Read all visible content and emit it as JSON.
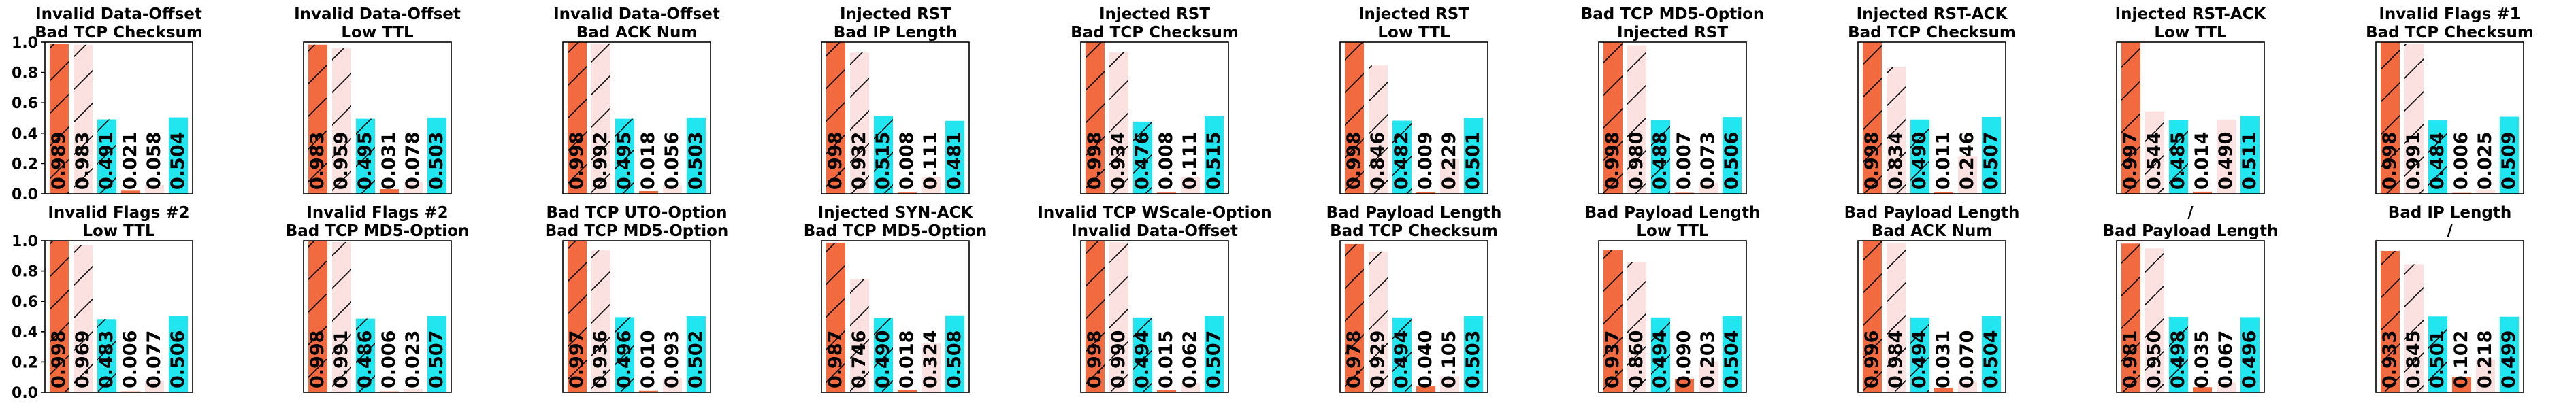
{
  "figure": {
    "colors": [
      "#f26a3f",
      "#fbe1df",
      "#21e6f0",
      "#f26a3f",
      "#fbe1df",
      "#21e6f0"
    ],
    "hatch": [
      true,
      true,
      true,
      false,
      false,
      false
    ],
    "yticks": [
      "0.0",
      "0.2",
      "0.4",
      "0.6",
      "0.8",
      "1.0"
    ],
    "ylim": [
      0,
      1
    ]
  },
  "chart_data": [
    {
      "type": "bar",
      "title": [
        "Invalid Data-Offset",
        "Bad TCP Checksum"
      ],
      "values": [
        0.989,
        0.983,
        0.491,
        0.021,
        0.058,
        0.504
      ],
      "labels": [
        "0.989",
        "0.983",
        "0.491",
        "0.021",
        "0.058",
        "0.504"
      ]
    },
    {
      "type": "bar",
      "title": [
        "Invalid Data-Offset",
        "Low TTL"
      ],
      "values": [
        0.983,
        0.959,
        0.495,
        0.031,
        0.078,
        0.503
      ],
      "labels": [
        "0.983",
        "0.959",
        "0.495",
        "0.031",
        "0.078",
        "0.503"
      ]
    },
    {
      "type": "bar",
      "title": [
        "Invalid Data-Offset",
        "Bad ACK Num"
      ],
      "values": [
        0.998,
        0.992,
        0.495,
        0.018,
        0.056,
        0.503
      ],
      "labels": [
        "0.998",
        "0.992",
        "0.495",
        "0.018",
        "0.056",
        "0.503"
      ]
    },
    {
      "type": "bar",
      "title": [
        "Injected RST",
        "Bad IP Length"
      ],
      "values": [
        0.998,
        0.932,
        0.515,
        0.008,
        0.111,
        0.481
      ],
      "labels": [
        "0.998",
        "0.932",
        "0.515",
        "0.008",
        "0.111",
        "0.481"
      ]
    },
    {
      "type": "bar",
      "title": [
        "Injected RST",
        "Bad TCP Checksum"
      ],
      "values": [
        0.998,
        0.934,
        0.476,
        0.008,
        0.111,
        0.515
      ],
      "labels": [
        "0.998",
        "0.934",
        "0.476",
        "0.008",
        "0.111",
        "0.515"
      ]
    },
    {
      "type": "bar",
      "title": [
        "Injected RST",
        "Low TTL"
      ],
      "values": [
        0.998,
        0.846,
        0.482,
        0.009,
        0.229,
        0.501
      ],
      "labels": [
        "0.998",
        "0.846",
        "0.482",
        "0.009",
        "0.229",
        "0.501"
      ]
    },
    {
      "type": "bar",
      "title": [
        "Bad TCP MD5-Option",
        "Injected RST"
      ],
      "values": [
        0.998,
        0.98,
        0.488,
        0.007,
        0.073,
        0.506
      ],
      "labels": [
        "0.998",
        "0.980",
        "0.488",
        "0.007",
        "0.073",
        "0.506"
      ]
    },
    {
      "type": "bar",
      "title": [
        "Injected RST-ACK",
        "Bad TCP Checksum"
      ],
      "values": [
        0.998,
        0.834,
        0.49,
        0.011,
        0.246,
        0.507
      ],
      "labels": [
        "0.998",
        "0.834",
        "0.490",
        "0.011",
        "0.246",
        "0.507"
      ]
    },
    {
      "type": "bar",
      "title": [
        "Injected RST-ACK",
        "Low TTL"
      ],
      "values": [
        0.997,
        0.544,
        0.485,
        0.014,
        0.49,
        0.511
      ],
      "labels": [
        "0.997",
        "0.544",
        "0.485",
        "0.014",
        "0.490",
        "0.511"
      ]
    },
    {
      "type": "bar",
      "title": [
        "Invalid Flags #1",
        "Bad TCP Checksum"
      ],
      "values": [
        0.998,
        0.991,
        0.484,
        0.006,
        0.025,
        0.509
      ],
      "labels": [
        "0.998",
        "0.991",
        "0.484",
        "0.006",
        "0.025",
        "0.509"
      ]
    },
    {
      "type": "bar",
      "title": [
        "Invalid Flags #2",
        "Low TTL"
      ],
      "values": [
        0.998,
        0.969,
        0.483,
        0.006,
        0.077,
        0.506
      ],
      "labels": [
        "0.998",
        "0.969",
        "0.483",
        "0.006",
        "0.077",
        "0.506"
      ]
    },
    {
      "type": "bar",
      "title": [
        "Invalid Flags #2",
        "Bad TCP MD5-Option"
      ],
      "values": [
        0.998,
        0.991,
        0.486,
        0.006,
        0.023,
        0.507
      ],
      "labels": [
        "0.998",
        "0.991",
        "0.486",
        "0.006",
        "0.023",
        "0.507"
      ]
    },
    {
      "type": "bar",
      "title": [
        "Bad TCP UTO-Option",
        "Bad TCP MD5-Option"
      ],
      "values": [
        0.997,
        0.936,
        0.496,
        0.01,
        0.093,
        0.502
      ],
      "labels": [
        "0.997",
        "0.936",
        "0.496",
        "0.010",
        "0.093",
        "0.502"
      ]
    },
    {
      "type": "bar",
      "title": [
        "Injected SYN-ACK",
        "Bad TCP MD5-Option"
      ],
      "values": [
        0.987,
        0.746,
        0.49,
        0.018,
        0.324,
        0.508
      ],
      "labels": [
        "0.987",
        "0.746",
        "0.490",
        "0.018",
        "0.324",
        "0.508"
      ]
    },
    {
      "type": "bar",
      "title": [
        "Invalid TCP WScale-Option",
        "Invalid Data-Offset"
      ],
      "values": [
        0.998,
        0.99,
        0.494,
        0.015,
        0.062,
        0.507
      ],
      "labels": [
        "0.998",
        "0.990",
        "0.494",
        "0.015",
        "0.062",
        "0.507"
      ]
    },
    {
      "type": "bar",
      "title": [
        "Bad Payload Length",
        "Bad TCP Checksum"
      ],
      "values": [
        0.978,
        0.929,
        0.494,
        0.04,
        0.105,
        0.503
      ],
      "labels": [
        "0.978",
        "0.929",
        "0.494",
        "0.040",
        "0.105",
        "0.503"
      ]
    },
    {
      "type": "bar",
      "title": [
        "Bad Payload Length",
        "Low TTL"
      ],
      "values": [
        0.937,
        0.86,
        0.494,
        0.09,
        0.203,
        0.504
      ],
      "labels": [
        "0.937",
        "0.860",
        "0.494",
        "0.090",
        "0.203",
        "0.504"
      ]
    },
    {
      "type": "bar",
      "title": [
        "Bad Payload Length",
        "Bad ACK Num"
      ],
      "values": [
        0.996,
        0.984,
        0.494,
        0.031,
        0.07,
        0.504
      ],
      "labels": [
        "0.996",
        "0.984",
        "0.494",
        "0.031",
        "0.070",
        "0.504"
      ]
    },
    {
      "type": "bar",
      "title": [
        "/",
        "Bad Payload Length"
      ],
      "values": [
        0.981,
        0.95,
        0.498,
        0.035,
        0.067,
        0.496
      ],
      "labels": [
        "0.981",
        "0.950",
        "0.498",
        "0.035",
        "0.067",
        "0.496"
      ]
    },
    {
      "type": "bar",
      "title": [
        "Bad IP Length",
        "/"
      ],
      "values": [
        0.933,
        0.845,
        0.501,
        0.102,
        0.218,
        0.499
      ],
      "labels": [
        "0.933",
        "0.845",
        "0.501",
        "0.102",
        "0.218",
        "0.499"
      ]
    }
  ]
}
